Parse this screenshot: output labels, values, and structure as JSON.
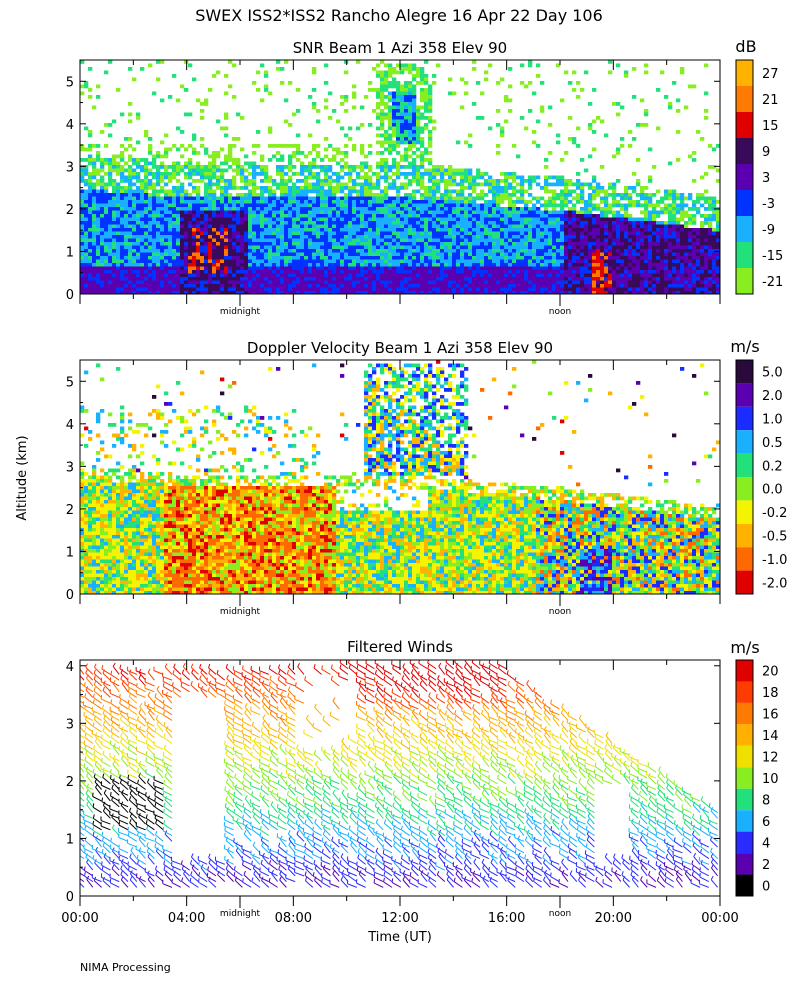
{
  "figure": {
    "title": "SWEX ISS2*ISS2 Rancho Alegre  16 Apr 22 Day 106",
    "ylabel": "Altitude (km)",
    "xlabel": "Time (UT)",
    "footer": "NIMA Processing",
    "time_ticks": [
      "00:00",
      "04:00",
      "08:00",
      "12:00",
      "16:00",
      "20:00",
      "00:00"
    ],
    "day_markers": [
      "midnight",
      "noon"
    ]
  },
  "chart_data": [
    {
      "type": "heatmap",
      "title": "SNR Beam 1 Azi 358 Elev 90",
      "xlabel": "",
      "ylabel": "Altitude (km)",
      "xlim": [
        0,
        24
      ],
      "ylim": [
        0,
        5.5
      ],
      "yticks": [
        "0",
        "1",
        "2",
        "3",
        "4",
        "5"
      ],
      "colorbar": {
        "unit": "dB",
        "labels": [
          "27",
          "21",
          "15",
          "9",
          "3",
          "-3",
          "-9",
          "-15",
          "-21"
        ],
        "colors": [
          "#ffb300",
          "#ff7a00",
          "#e00000",
          "#3a0a5a",
          "#5a00b0",
          "#0033ff",
          "#18b0ff",
          "#22e07a",
          "#88ee22"
        ]
      },
      "features": [
        {
          "name": "low-level high SNR layer",
          "x": [
            3.5,
            6.5
          ],
          "y": [
            0.3,
            2.1
          ],
          "value_db": 20
        },
        {
          "name": "afternoon boundary layer",
          "x": [
            18,
            24
          ],
          "y": [
            0,
            2.1
          ],
          "value_db": 9
        },
        {
          "name": "elevated echo",
          "x": [
            11,
            13
          ],
          "y": [
            3.2,
            5.4
          ],
          "value_db": -3
        }
      ]
    },
    {
      "type": "heatmap",
      "title": "Doppler Velocity Beam 1 Azi 358 Elev 90",
      "xlabel": "",
      "ylabel": "Altitude (km)",
      "xlim": [
        0,
        24
      ],
      "ylim": [
        0,
        5.5
      ],
      "yticks": [
        "0",
        "1",
        "2",
        "3",
        "4",
        "5"
      ],
      "colorbar": {
        "unit": "m/s",
        "labels": [
          "5.0",
          "2.0",
          "1.0",
          "0.5",
          "0.2",
          "0.0",
          "-0.2",
          "-0.5",
          "-1.0",
          "-2.0"
        ],
        "colors": [
          "#2a0a3a",
          "#5a00b0",
          "#1a2cff",
          "#18b0ff",
          "#22e07a",
          "#88ee22",
          "#f4f400",
          "#ffb300",
          "#ff6a00",
          "#e00000"
        ]
      },
      "features": [
        {
          "name": "strong downdraft region",
          "x": [
            3,
            9
          ],
          "y": [
            0,
            2.6
          ],
          "value_ms": -1.0
        },
        {
          "name": "updraft region",
          "x": [
            18.5,
            20
          ],
          "y": [
            0,
            1.2
          ],
          "value_ms": 2.0
        },
        {
          "name": "elevated echo",
          "x": [
            10.5,
            13.5
          ],
          "y": [
            3,
            5.4
          ],
          "value_ms": 0.5
        }
      ]
    },
    {
      "type": "heatmap",
      "title": "Filtered Winds",
      "xlabel": "Time (UT)",
      "ylabel": "Altitude (km)",
      "xlim": [
        0,
        24
      ],
      "ylim": [
        0,
        4.1
      ],
      "yticks": [
        "0",
        "1",
        "2",
        "3",
        "4"
      ],
      "colorbar": {
        "unit": "m/s",
        "labels": [
          "20",
          "18",
          "16",
          "14",
          "12",
          "10",
          "8",
          "6",
          "4",
          "2",
          "0"
        ],
        "colors": [
          "#e00000",
          "#ff3c00",
          "#ff7a00",
          "#ffb000",
          "#f0e000",
          "#88ee22",
          "#22e07a",
          "#18b0ff",
          "#2a2cff",
          "#5a00b0",
          "#000000"
        ]
      },
      "speed_profile": [
        {
          "altitude_km": 0.2,
          "speed_ms": 3
        },
        {
          "altitude_km": 1.0,
          "speed_ms": 6
        },
        {
          "altitude_km": 2.0,
          "speed_ms": 10
        },
        {
          "altitude_km": 3.0,
          "speed_ms": 14
        },
        {
          "altitude_km": 3.8,
          "speed_ms": 19
        }
      ]
    }
  ]
}
